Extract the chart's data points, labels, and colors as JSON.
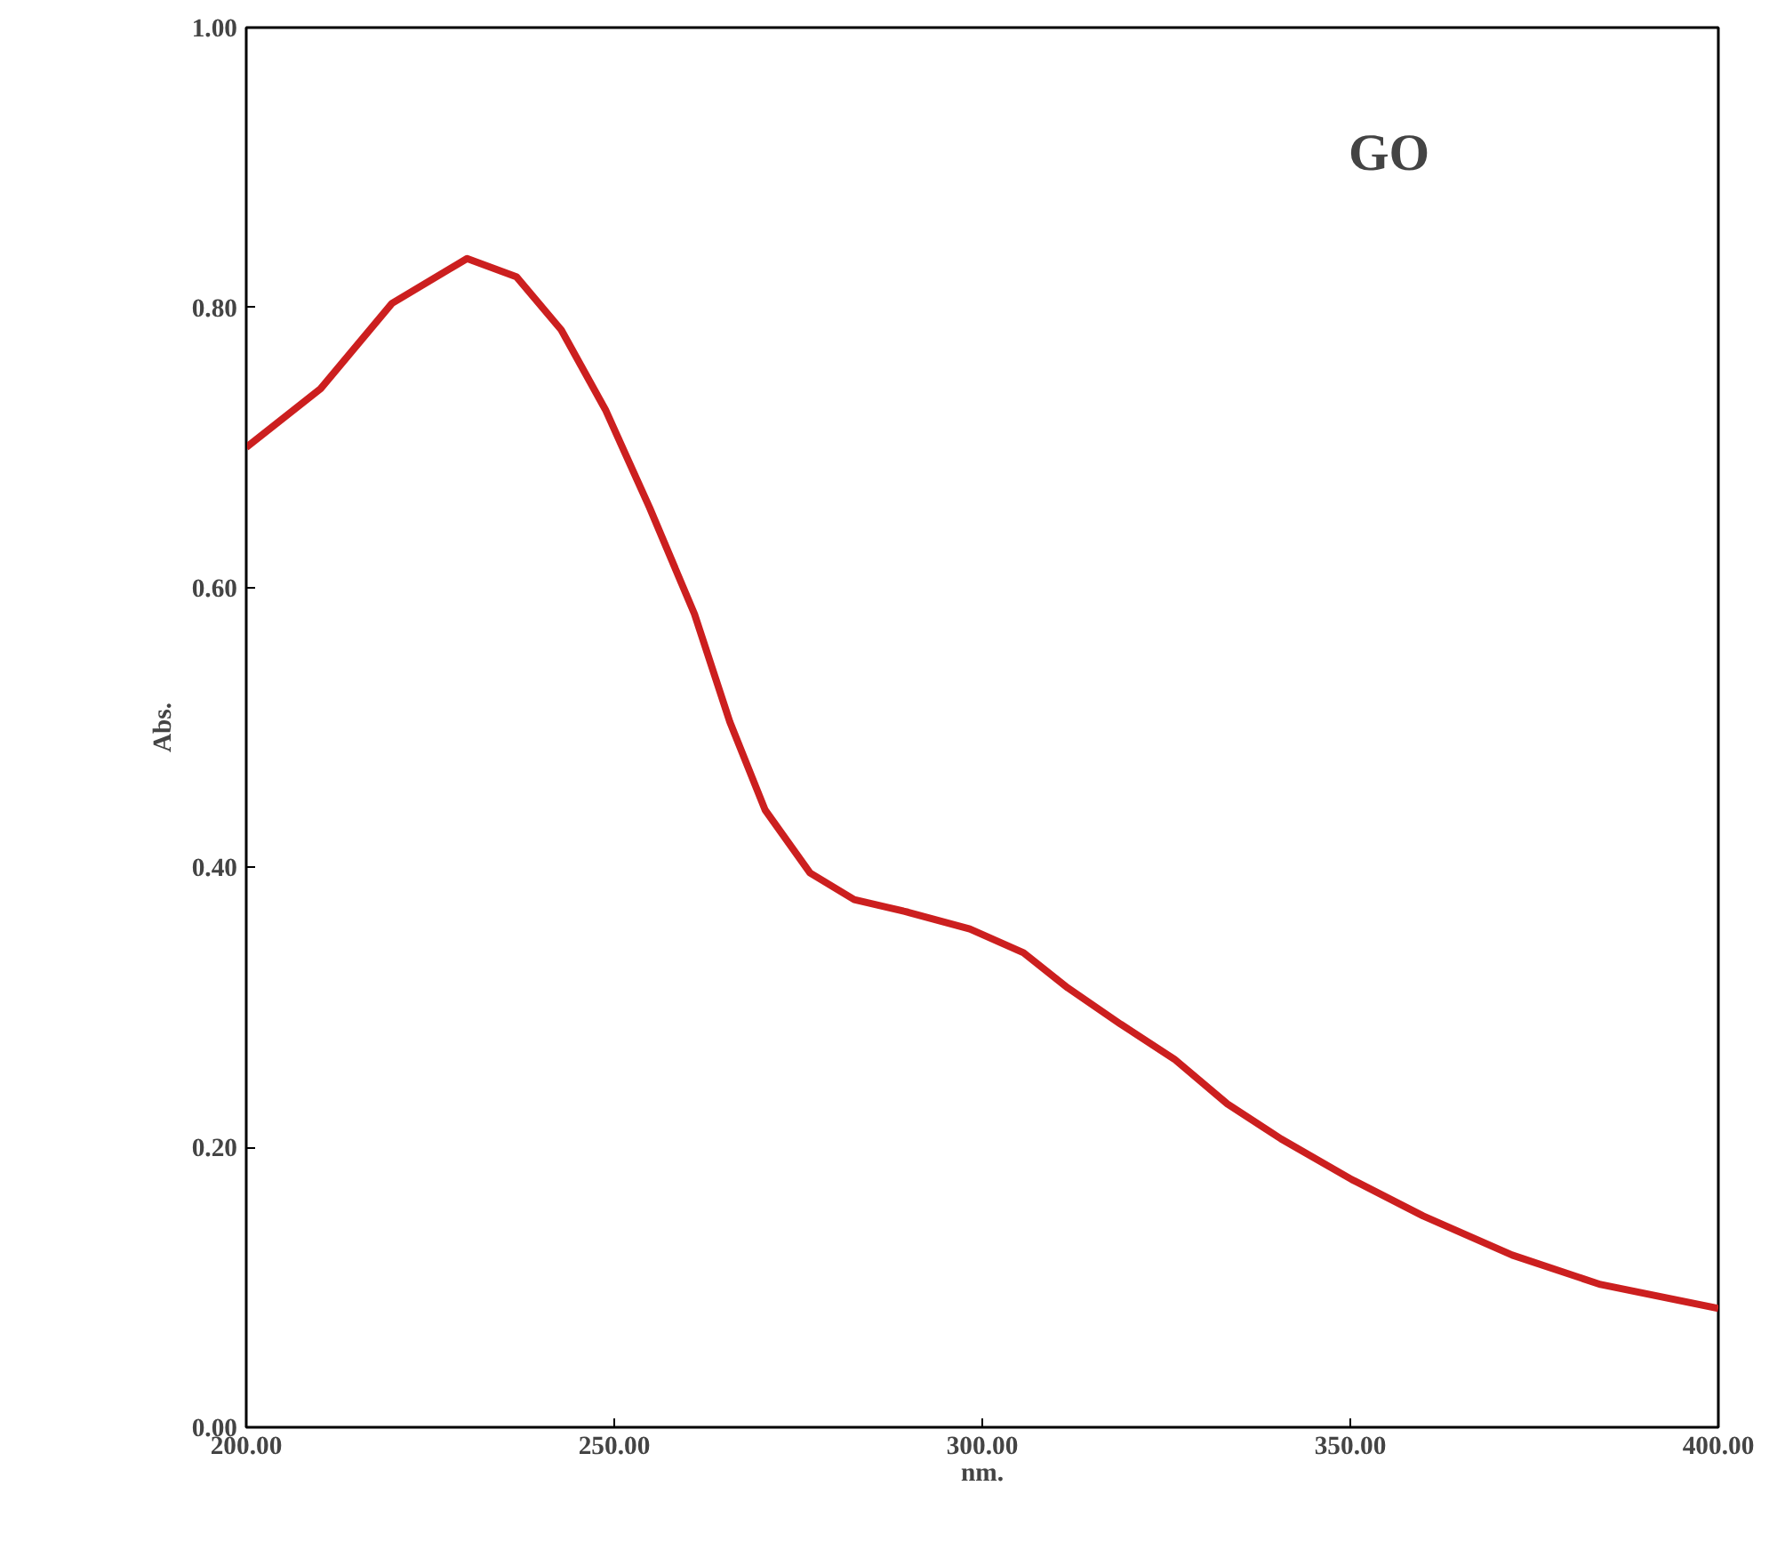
{
  "chart_data": {
    "type": "line",
    "xlabel": "nm.",
    "ylabel": "Abs.",
    "annotations": [
      "GO"
    ],
    "x": [
      200,
      210.1,
      219.8,
      230,
      236.7,
      242.8,
      248.8,
      254.8,
      260.9,
      265.7,
      270.5,
      276.6,
      282.6,
      289.9,
      298.3,
      305.6,
      311.6,
      318.8,
      326.1,
      333.3,
      340.6,
      350.2,
      359.9,
      372,
      384,
      400
    ],
    "series": [
      {
        "color": "#cc1f1f",
        "values": [
          0.7,
          0.742,
          0.803,
          0.835,
          0.822,
          0.784,
          0.727,
          0.657,
          0.581,
          0.504,
          0.441,
          0.396,
          0.377,
          0.368,
          0.356,
          0.339,
          0.314,
          0.288,
          0.263,
          0.231,
          0.206,
          0.177,
          0.151,
          0.123,
          0.102,
          0.085
        ]
      }
    ],
    "xlim": [
      200,
      400
    ],
    "ylim": [
      0,
      1
    ],
    "xticks": [
      {
        "value": 200,
        "label": "200.00"
      },
      {
        "value": 250,
        "label": "250.00"
      },
      {
        "value": 300,
        "label": "300.00"
      },
      {
        "value": 350,
        "label": "350.00"
      },
      {
        "value": 400,
        "label": "400.00"
      }
    ],
    "yticks": [
      {
        "value": 0,
        "label": "0.00"
      },
      {
        "value": 0.2,
        "label": "0.20"
      },
      {
        "value": 0.4,
        "label": "0.40"
      },
      {
        "value": 0.6,
        "label": "0.60"
      },
      {
        "value": 0.8,
        "label": "0.80"
      },
      {
        "value": 1,
        "label": "1.00"
      }
    ],
    "grid": false,
    "line_style": "solid",
    "marker": "none"
  }
}
